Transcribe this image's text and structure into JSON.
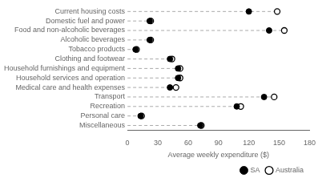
{
  "chart_data": {
    "type": "dot",
    "orientation": "horizontal",
    "categories": [
      "Current housing costs",
      "Domestic fuel and power",
      "Food and non-alcoholic beverages",
      "Alcoholic beverages",
      "Tobacco products",
      "Clothing and footwear",
      "Household furnishings and equipment",
      "Household services and operation",
      "Medical care and health expenses",
      "Transport",
      "Recreation",
      "Personal care",
      "Miscellaneous"
    ],
    "series": [
      {
        "type": "line",
        "line_style": "dashed",
        "color": "#aaaaaa",
        "values": [
          148,
          23,
          155,
          23,
          9,
          44,
          52,
          52,
          48,
          145,
          112,
          14,
          73
        ]
      },
      {
        "name": "SA",
        "color": "#000000",
        "marker": "filled_circle",
        "values": [
          120,
          22,
          140,
          22,
          8,
          42,
          50,
          50,
          42,
          135,
          108,
          13,
          72
        ]
      },
      {
        "name": "Australia",
        "color": "#000000",
        "marker": "open_circle",
        "values": [
          148,
          23,
          155,
          23,
          9,
          44,
          52,
          52,
          48,
          145,
          112,
          14,
          73
        ]
      }
    ],
    "xlabel": "Average weekly expenditure ($)",
    "xlim": [
      0,
      180
    ],
    "xticks": [
      0,
      30,
      60,
      90,
      120,
      150,
      180
    ],
    "grid": false,
    "legend": "lower right"
  }
}
